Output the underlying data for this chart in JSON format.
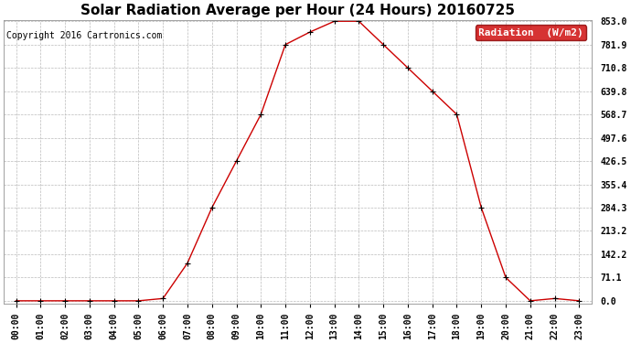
{
  "title": "Solar Radiation Average per Hour (24 Hours) 20160725",
  "copyright": "Copyright 2016 Cartronics.com",
  "legend_label": "Radiation  (W/m2)",
  "hours": [
    "00:00",
    "01:00",
    "02:00",
    "03:00",
    "04:00",
    "05:00",
    "06:00",
    "07:00",
    "08:00",
    "09:00",
    "10:00",
    "11:00",
    "12:00",
    "13:00",
    "14:00",
    "15:00",
    "16:00",
    "17:00",
    "18:00",
    "19:00",
    "20:00",
    "21:00",
    "22:00",
    "23:00"
  ],
  "values": [
    0.0,
    0.0,
    0.0,
    0.0,
    0.0,
    0.0,
    7.0,
    115.0,
    284.3,
    426.5,
    568.7,
    781.9,
    820.0,
    853.0,
    853.0,
    781.9,
    710.8,
    639.8,
    568.7,
    284.3,
    71.1,
    0.0,
    7.0,
    0.0
  ],
  "yticks": [
    0.0,
    71.1,
    142.2,
    213.2,
    284.3,
    355.4,
    426.5,
    497.6,
    568.7,
    639.8,
    710.8,
    781.9,
    853.0
  ],
  "ytick_labels": [
    "0.0",
    "71.1",
    "142.2",
    "213.2",
    "284.3",
    "355.4",
    "426.5",
    "497.6",
    "568.7",
    "639.8",
    "710.8",
    "781.9",
    "853.0"
  ],
  "line_color": "#cc0000",
  "marker": "+",
  "marker_color": "#000000",
  "bg_color": "#ffffff",
  "plot_bg_color": "#ffffff",
  "grid_color": "#bbbbbb",
  "legend_bg": "#cc0000",
  "legend_text_color": "#ffffff",
  "title_fontsize": 11,
  "copyright_fontsize": 7,
  "tick_fontsize": 7,
  "legend_fontsize": 8,
  "ylim_max": 853.0
}
